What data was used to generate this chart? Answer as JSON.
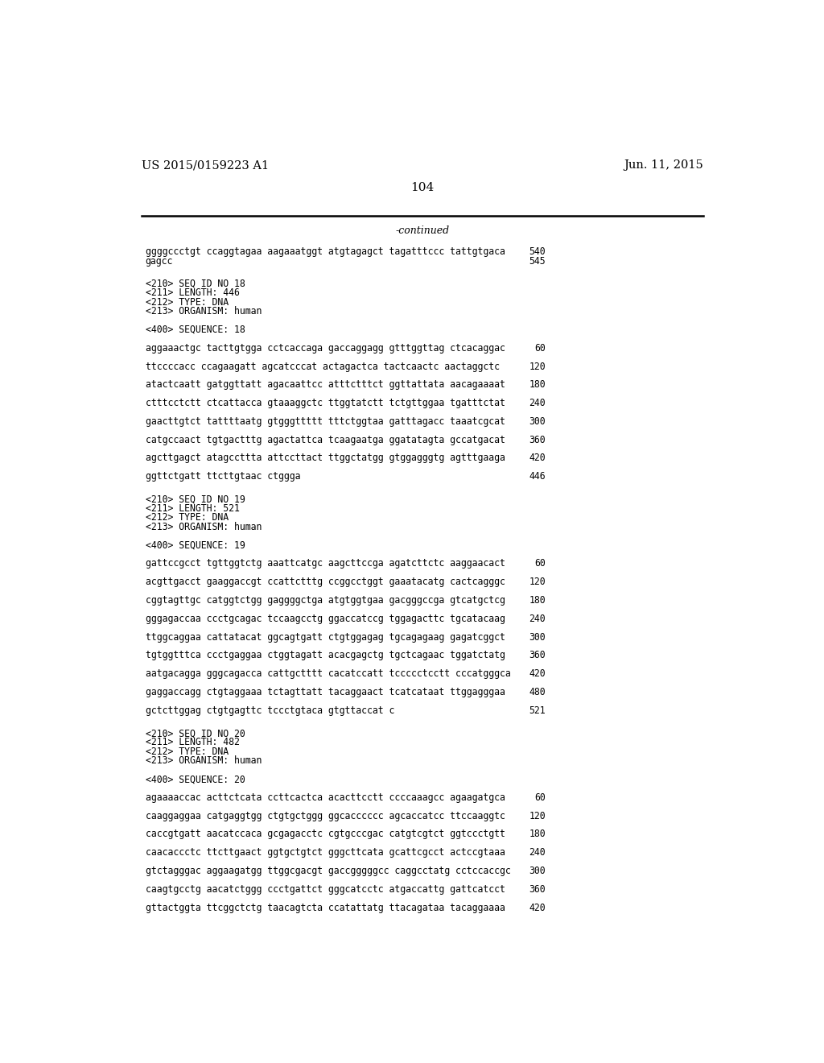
{
  "patent_left": "US 2015/0159223 A1",
  "patent_right": "Jun. 11, 2015",
  "page_number": "104",
  "continued_label": "-continued",
  "background_color": "#ffffff",
  "text_color": "#000000",
  "lines": [
    {
      "text": "ggggccctgt ccaggtagaa aagaaatggt atgtagagct tagatttccc tattgtgaca",
      "num": "540",
      "type": "seq"
    },
    {
      "text": "gagcc",
      "num": "545",
      "type": "seq"
    },
    {
      "text": "",
      "type": "blank2"
    },
    {
      "text": "<210> SEQ ID NO 18",
      "type": "meta"
    },
    {
      "text": "<211> LENGTH: 446",
      "type": "meta"
    },
    {
      "text": "<212> TYPE: DNA",
      "type": "meta"
    },
    {
      "text": "<213> ORGANISM: human",
      "type": "meta"
    },
    {
      "text": "",
      "type": "blank1"
    },
    {
      "text": "<400> SEQUENCE: 18",
      "type": "meta"
    },
    {
      "text": "",
      "type": "blank1"
    },
    {
      "text": "aggaaactgc tacttgtgga cctcaccaga gaccaggagg gtttggttag ctcacaggac",
      "num": "60",
      "type": "seq"
    },
    {
      "text": "",
      "type": "blank1"
    },
    {
      "text": "ttccccacc ccagaagatt agcatcccat actagactca tactcaactc aactaggctc",
      "num": "120",
      "type": "seq"
    },
    {
      "text": "",
      "type": "blank1"
    },
    {
      "text": "atactcaatt gatggttatt agacaattcc atttctttct ggttattata aacagaaaat",
      "num": "180",
      "type": "seq"
    },
    {
      "text": "",
      "type": "blank1"
    },
    {
      "text": "ctttcctctt ctcattacca gtaaaggctc ttggtatctt tctgttggaa tgatttctat",
      "num": "240",
      "type": "seq"
    },
    {
      "text": "",
      "type": "blank1"
    },
    {
      "text": "gaacttgtct tattttaatg gtgggttttt tttctggtaa gatttagacc taaatcgcat",
      "num": "300",
      "type": "seq"
    },
    {
      "text": "",
      "type": "blank1"
    },
    {
      "text": "catgccaact tgtgactttg agactattca tcaagaatga ggatatagta gccatgacat",
      "num": "360",
      "type": "seq"
    },
    {
      "text": "",
      "type": "blank1"
    },
    {
      "text": "agcttgagct atagccttta attccttact ttggctatgg gtggagggtg agtttgaaga",
      "num": "420",
      "type": "seq"
    },
    {
      "text": "",
      "type": "blank1"
    },
    {
      "text": "ggttctgatt ttcttgtaac ctggga",
      "num": "446",
      "type": "seq"
    },
    {
      "text": "",
      "type": "blank2"
    },
    {
      "text": "<210> SEQ ID NO 19",
      "type": "meta"
    },
    {
      "text": "<211> LENGTH: 521",
      "type": "meta"
    },
    {
      "text": "<212> TYPE: DNA",
      "type": "meta"
    },
    {
      "text": "<213> ORGANISM: human",
      "type": "meta"
    },
    {
      "text": "",
      "type": "blank1"
    },
    {
      "text": "<400> SEQUENCE: 19",
      "type": "meta"
    },
    {
      "text": "",
      "type": "blank1"
    },
    {
      "text": "gattccgcct tgttggtctg aaattcatgc aagcttccga agatcttctc aaggaacact",
      "num": "60",
      "type": "seq"
    },
    {
      "text": "",
      "type": "blank1"
    },
    {
      "text": "acgttgacct gaaggaccgt ccattctttg ccggcctggt gaaatacatg cactcagggc",
      "num": "120",
      "type": "seq"
    },
    {
      "text": "",
      "type": "blank1"
    },
    {
      "text": "cggtagttgc catggtctgg gaggggctga atgtggtgaa gacgggccga gtcatgctcg",
      "num": "180",
      "type": "seq"
    },
    {
      "text": "",
      "type": "blank1"
    },
    {
      "text": "gggagaccaa ccctgcagac tccaagcctg ggaccatccg tggagacttc tgcatacaag",
      "num": "240",
      "type": "seq"
    },
    {
      "text": "",
      "type": "blank1"
    },
    {
      "text": "ttggcaggaa cattatacat ggcagtgatt ctgtggagag tgcagagaag gagatcggct",
      "num": "300",
      "type": "seq"
    },
    {
      "text": "",
      "type": "blank1"
    },
    {
      "text": "tgtggtttca ccctgaggaa ctggtagatt acacgagctg tgctcagaac tggatctatg",
      "num": "360",
      "type": "seq"
    },
    {
      "text": "",
      "type": "blank1"
    },
    {
      "text": "aatgacagga gggcagacca cattgctttt cacatccatt tccccctcctt cccatgggca",
      "num": "420",
      "type": "seq"
    },
    {
      "text": "",
      "type": "blank1"
    },
    {
      "text": "gaggaccagg ctgtaggaaa tctagttatt tacaggaact tcatcataat ttggagggaa",
      "num": "480",
      "type": "seq"
    },
    {
      "text": "",
      "type": "blank1"
    },
    {
      "text": "gctcttggag ctgtgagttc tccctgtaca gtgttaccat c",
      "num": "521",
      "type": "seq"
    },
    {
      "text": "",
      "type": "blank2"
    },
    {
      "text": "<210> SEQ ID NO 20",
      "type": "meta"
    },
    {
      "text": "<211> LENGTH: 482",
      "type": "meta"
    },
    {
      "text": "<212> TYPE: DNA",
      "type": "meta"
    },
    {
      "text": "<213> ORGANISM: human",
      "type": "meta"
    },
    {
      "text": "",
      "type": "blank1"
    },
    {
      "text": "<400> SEQUENCE: 20",
      "type": "meta"
    },
    {
      "text": "",
      "type": "blank1"
    },
    {
      "text": "agaaaaccac acttctcata ccttcactca acacttcctt ccccaaagcc agaagatgca",
      "num": "60",
      "type": "seq"
    },
    {
      "text": "",
      "type": "blank1"
    },
    {
      "text": "caaggaggaa catgaggtgg ctgtgctggg ggcacccccc agcaccatcc ttccaaggtc",
      "num": "120",
      "type": "seq"
    },
    {
      "text": "",
      "type": "blank1"
    },
    {
      "text": "caccgtgatt aacatccaca gcgagacctc cgtgcccgac catgtcgtct ggtccctgtt",
      "num": "180",
      "type": "seq"
    },
    {
      "text": "",
      "type": "blank1"
    },
    {
      "text": "caacaccctc ttcttgaact ggtgctgtct gggcttcata gcattcgcct actccgtaaa",
      "num": "240",
      "type": "seq"
    },
    {
      "text": "",
      "type": "blank1"
    },
    {
      "text": "gtctagggac aggaagatgg ttggcgacgt gaccgggggcc caggcctatg cctccaccgc",
      "num": "300",
      "type": "seq"
    },
    {
      "text": "",
      "type": "blank1"
    },
    {
      "text": "caagtgcctg aacatctggg ccctgattct gggcatcctc atgaccattg gattcatcct",
      "num": "360",
      "type": "seq"
    },
    {
      "text": "",
      "type": "blank1"
    },
    {
      "text": "gttactggta ttcggctctg taacagtcta ccatattatg ttacagataa tacaggaaaa",
      "num": "420",
      "type": "seq"
    }
  ]
}
